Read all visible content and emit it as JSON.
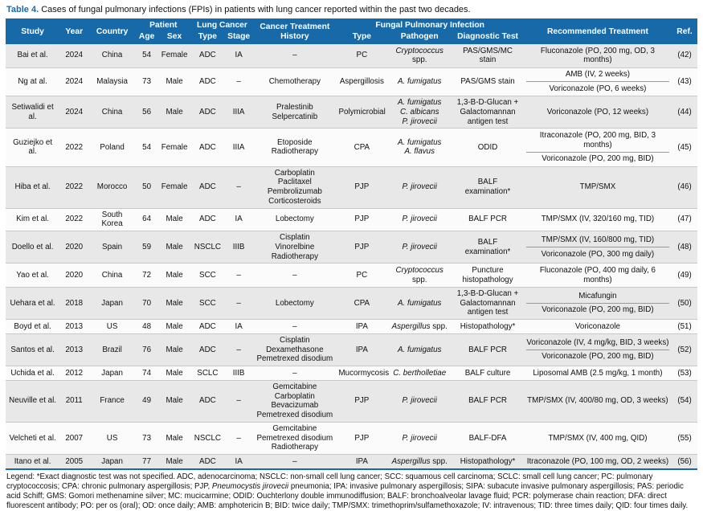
{
  "title": {
    "label": "Table 4.",
    "text": " Cases of fungal pulmonary infections (FPIs) in patients with lung cancer reported within the past two decades."
  },
  "colors": {
    "accent": "#1769a8",
    "row_shade": "#e8e8e8"
  },
  "header": {
    "study": "Study",
    "year": "Year",
    "country": "Country",
    "patient_group": "Patient",
    "age": "Age",
    "sex": "Sex",
    "lung_cancer_group": "Lung Cancer",
    "lc_type": "Type",
    "lc_stage": "Stage",
    "history": "Cancer Treatment History",
    "fpi_group": "Fungal Pulmonary Infection",
    "fpi_type": "Type",
    "pathogen": "Pathogen",
    "dx": "Diagnostic Test",
    "treatment": "Recommended Treatment",
    "ref": "Ref."
  },
  "rows": [
    {
      "study": "Bai et al.",
      "year": "2024",
      "country": "China",
      "age": "54",
      "sex": "Female",
      "lc_type": "ADC",
      "lc_stage": "IA",
      "history": [
        "–"
      ],
      "fpi_type": "PC",
      "pathogens": [
        {
          "italic": "Cryptococcus",
          "roman": " spp."
        }
      ],
      "dx": "PAS/GMS/MC stain",
      "treatments": [
        "Fluconazole (PO, 200 mg, OD, 3 months)"
      ],
      "ref": "(42)"
    },
    {
      "study": "Ng at al.",
      "year": "2024",
      "country": "Malaysia",
      "age": "73",
      "sex": "Male",
      "lc_type": "ADC",
      "lc_stage": "–",
      "history": [
        "Chemotherapy"
      ],
      "fpi_type": "Aspergillosis",
      "pathogens": [
        {
          "italic": "A. fumigatus",
          "roman": ""
        }
      ],
      "dx": "PAS/GMS stain",
      "treatments": [
        "AMB (IV, 2 weeks)",
        "Voriconazole (PO, 6 weeks)"
      ],
      "ref": "(43)"
    },
    {
      "study": "Setiwalidi et al.",
      "year": "2024",
      "country": "China",
      "age": "56",
      "sex": "Male",
      "lc_type": "ADC",
      "lc_stage": "IIIA",
      "history": [
        "Pralestinib",
        "Selpercatinib"
      ],
      "fpi_type": "Polymicrobial",
      "pathogens": [
        {
          "italic": "A. fumigatus",
          "roman": ""
        },
        {
          "italic": "C. albicans",
          "roman": ""
        },
        {
          "italic": "P. jirovecii",
          "roman": ""
        }
      ],
      "dx": "1,3-B-D-Glucan + Galactomannan antigen test",
      "treatments": [
        "Voriconazole (PO, 12 weeks)"
      ],
      "ref": "(44)"
    },
    {
      "study": "Guziejko et al.",
      "year": "2022",
      "country": "Poland",
      "age": "54",
      "sex": "Female",
      "lc_type": "ADC",
      "lc_stage": "IIIA",
      "history": [
        "Etoposide",
        "Radiotherapy"
      ],
      "fpi_type": "CPA",
      "pathogens": [
        {
          "italic": "A. fumigatus",
          "roman": ""
        },
        {
          "italic": "A. flavus",
          "roman": ""
        }
      ],
      "dx": "ODID",
      "treatments": [
        "Itraconazole (PO, 200 mg, BID, 3 months)",
        "Voriconazole (PO, 200 mg, BID)"
      ],
      "ref": "(45)"
    },
    {
      "study": "Hiba et al.",
      "year": "2022",
      "country": "Morocco",
      "age": "50",
      "sex": "Female",
      "lc_type": "ADC",
      "lc_stage": "–",
      "history": [
        "Carboplatin",
        "Paclitaxel",
        "Pembrolizumab",
        "Corticosteroids"
      ],
      "fpi_type": "PJP",
      "pathogens": [
        {
          "italic": "P. jirovecii",
          "roman": ""
        }
      ],
      "dx": "BALF examination*",
      "treatments": [
        "TMP/SMX"
      ],
      "ref": "(46)"
    },
    {
      "study": "Kim et al.",
      "year": "2022",
      "country": "South Korea",
      "age": "64",
      "sex": "Male",
      "lc_type": "ADC",
      "lc_stage": "IA",
      "history": [
        "Lobectomy"
      ],
      "fpi_type": "PJP",
      "pathogens": [
        {
          "italic": "P. jirovecii",
          "roman": ""
        }
      ],
      "dx": "BALF PCR",
      "treatments": [
        "TMP/SMX (IV, 320/160 mg, TID)"
      ],
      "ref": "(47)"
    },
    {
      "study": "Doello et al.",
      "year": "2020",
      "country": "Spain",
      "age": "59",
      "sex": "Male",
      "lc_type": "NSCLC",
      "lc_stage": "IIIB",
      "history": [
        "Cisplatin",
        "Vinorelbine",
        "Radiotherapy"
      ],
      "fpi_type": "PJP",
      "pathogens": [
        {
          "italic": "P. jirovecii",
          "roman": ""
        }
      ],
      "dx": "BALF examination*",
      "treatments": [
        "TMP/SMX (IV, 160/800 mg, TID)",
        "Voriconazole (PO, 300 mg daily)"
      ],
      "ref": "(48)"
    },
    {
      "study": "Yao et al.",
      "year": "2020",
      "country": "China",
      "age": "72",
      "sex": "Male",
      "lc_type": "SCC",
      "lc_stage": "–",
      "history": [
        "–"
      ],
      "fpi_type": "PC",
      "pathogens": [
        {
          "italic": "Cryptococcus",
          "roman": " spp."
        }
      ],
      "dx": "Puncture histopathology",
      "treatments": [
        "Fluconazole (PO, 400 mg daily, 6 months)"
      ],
      "ref": "(49)"
    },
    {
      "study": "Uehara et al.",
      "year": "2018",
      "country": "Japan",
      "age": "70",
      "sex": "Male",
      "lc_type": "SCC",
      "lc_stage": "–",
      "history": [
        "Lobectomy"
      ],
      "fpi_type": "CPA",
      "pathogens": [
        {
          "italic": "A. fumigatus",
          "roman": ""
        }
      ],
      "dx": "1,3-B-D-Glucan + Galactomannan antigen test",
      "treatments": [
        "Micafungin",
        "Voriconazole (PO, 200 mg, BID)"
      ],
      "ref": "(50)"
    },
    {
      "study": "Boyd et al.",
      "year": "2013",
      "country": "US",
      "age": "48",
      "sex": "Male",
      "lc_type": "ADC",
      "lc_stage": "IA",
      "history": [
        "–"
      ],
      "fpi_type": "IPA",
      "pathogens": [
        {
          "italic": "Aspergillus",
          "roman": " spp."
        }
      ],
      "dx": "Histopathology*",
      "treatments": [
        "Voriconazole"
      ],
      "ref": "(51)"
    },
    {
      "study": "Santos et al.",
      "year": "2013",
      "country": "Brazil",
      "age": "76",
      "sex": "Male",
      "lc_type": "ADC",
      "lc_stage": "–",
      "history": [
        "Cisplatin",
        "Dexamethasone",
        "Pemetrexed disodium"
      ],
      "fpi_type": "IPA",
      "pathogens": [
        {
          "italic": "A. fumigatus",
          "roman": ""
        }
      ],
      "dx": "BALF PCR",
      "treatments": [
        "Voriconazole (IV, 4 mg/kg, BID, 3 weeks)",
        "Voriconazole (PO, 200 mg, BID)"
      ],
      "ref": "(52)"
    },
    {
      "study": "Uchida et al.",
      "year": "2012",
      "country": "Japan",
      "age": "74",
      "sex": "Male",
      "lc_type": "SCLC",
      "lc_stage": "IIIB",
      "history": [
        "–"
      ],
      "fpi_type": "Mucormycosis",
      "pathogens": [
        {
          "italic": "C. bertholletiae",
          "roman": ""
        }
      ],
      "dx": "BALF culture",
      "treatments": [
        "Liposomal AMB (2.5 mg/kg, 1 month)"
      ],
      "ref": "(53)"
    },
    {
      "study": "Neuville et al.",
      "year": "2011",
      "country": "France",
      "age": "49",
      "sex": "Male",
      "lc_type": "ADC",
      "lc_stage": "–",
      "history": [
        "Gemcitabine",
        "Carboplatin",
        "Bevacizumab",
        "Pemetrexed disodium"
      ],
      "fpi_type": "PJP",
      "pathogens": [
        {
          "italic": "P. jirovecii",
          "roman": ""
        }
      ],
      "dx": "BALF PCR",
      "treatments": [
        "TMP/SMX (IV, 400/80 mg, OD, 3 weeks)"
      ],
      "ref": "(54)"
    },
    {
      "study": "Velcheti et al.",
      "year": "2007",
      "country": "US",
      "age": "73",
      "sex": "Male",
      "lc_type": "NSCLC",
      "lc_stage": "–",
      "history": [
        "Gemcitabine",
        "Pemetrexed disodium",
        "Radiotherapy"
      ],
      "fpi_type": "PJP",
      "pathogens": [
        {
          "italic": "P. jirovecii",
          "roman": ""
        }
      ],
      "dx": "BALF-DFA",
      "treatments": [
        "TMP/SMX (IV, 400 mg, QID)"
      ],
      "ref": "(55)"
    },
    {
      "study": "Itano et al.",
      "year": "2005",
      "country": "Japan",
      "age": "77",
      "sex": "Male",
      "lc_type": "ADC",
      "lc_stage": "IA",
      "history": [
        "–"
      ],
      "fpi_type": "IPA",
      "pathogens": [
        {
          "italic": "Aspergillus",
          "roman": " spp."
        }
      ],
      "dx": "Histopathology*",
      "treatments": [
        "Itraconazole (PO, 100 mg, OD, 2 weeks)"
      ],
      "ref": "(56)"
    }
  ],
  "legend": [
    {
      "t": "Legend: *Exact diagnostic test was not specified. ADC, adenocarcinoma; NSCLC: non-small cell lung cancer; SCC: squamous cell carcinoma; SCLC: small cell lung cancer; PC: pulmonary cryptococcosis; CPA: chronic pulmonary aspergillosis; PJP, ",
      "i": false
    },
    {
      "t": "Pneumocystis jirovecii",
      "i": true
    },
    {
      "t": " pneumonia; IPA: invasive pulmonary aspergillosis; SIPA: subacute invasive pulmonary aspergillosis; PAS: periodic acid Schiff; GMS: Gomori methenamine silver; MC: mucicarmine; ODID: Ouchterlony double immunodiffusion; BALF: bronchoalveolar lavage fluid; PCR: polymerase chain reaction; DFA: direct fluorescent antibody; PO: per os (oral); OD: once daily; AMB: amphotericin B; BID: twice daily; TMP/SMX: trimethoprim/sulfamethoxazole; IV: intravenous; TID: three times daily; QID: four times daily.",
      "i": false
    }
  ]
}
